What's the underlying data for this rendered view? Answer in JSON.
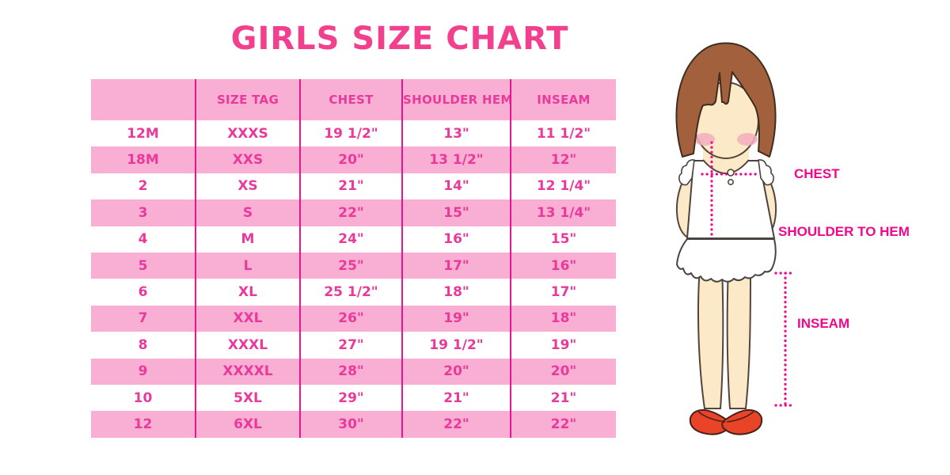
{
  "title": "GIRLS SIZE CHART",
  "chart_data": {
    "type": "table",
    "title": "GIRLS SIZE CHART",
    "columns": [
      "",
      "SIZE TAG",
      "CHEST",
      "SHOULDER HEM",
      "INSEAM"
    ],
    "rows": [
      [
        "12M",
        "XXXS",
        "19 1/2\"",
        "13\"",
        "11 1/2\""
      ],
      [
        "18M",
        "XXS",
        "20\"",
        "13 1/2\"",
        "12\""
      ],
      [
        "2",
        "XS",
        "21\"",
        "14\"",
        "12 1/4\""
      ],
      [
        "3",
        "S",
        "22\"",
        "15\"",
        "13 1/4\""
      ],
      [
        "4",
        "M",
        "24\"",
        "16\"",
        "15\""
      ],
      [
        "5",
        "L",
        "25\"",
        "17\"",
        "16\""
      ],
      [
        "6",
        "XL",
        "25 1/2\"",
        "18\"",
        "17\""
      ],
      [
        "7",
        "XXL",
        "26\"",
        "19\"",
        "18\""
      ],
      [
        "8",
        "XXXL",
        "27\"",
        "19 1/2\"",
        "19\""
      ],
      [
        "9",
        "XXXXL",
        "28\"",
        "20\"",
        "20\""
      ],
      [
        "10",
        "5XL",
        "29\"",
        "21\"",
        "21\""
      ],
      [
        "12",
        "6XL",
        "30\"",
        "22\"",
        "22\""
      ]
    ]
  },
  "diagram": {
    "labels": {
      "chest": "CHEST",
      "shoulder_to_hem": "SHOULDER TO HEM",
      "inseam": "INSEAM"
    }
  },
  "colors": {
    "title_pink": "#F2408F",
    "row_pink": "#F9AFD4",
    "cell_text_pink": "#E9399A",
    "divider_pink": "#E8168C",
    "label_magenta": "#F0088C",
    "hair_brown": "#A2613C",
    "skin": "#FCE9C8",
    "shoe_red": "#EA4428"
  }
}
